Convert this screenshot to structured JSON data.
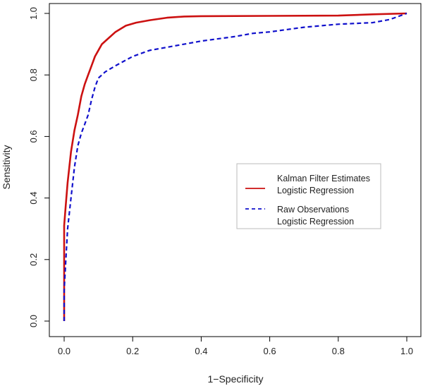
{
  "chart_data": {
    "type": "line",
    "title": "",
    "xlabel": "1−Specificity",
    "ylabel": "Sensitivity",
    "xlim": [
      0,
      1
    ],
    "ylim": [
      0,
      1
    ],
    "x_ticks": [
      "0.0",
      "0.2",
      "0.4",
      "0.6",
      "0.8",
      "1.0"
    ],
    "y_ticks": [
      "0.0",
      "0.2",
      "0.4",
      "0.6",
      "0.8",
      "1.0"
    ],
    "grid": false,
    "legend_position": "right",
    "series": [
      {
        "name": "Kalman Filter Estimates Logistic Regression",
        "legend_lines": [
          "Kalman Filter Estimates",
          "Logistic Regression"
        ],
        "color": "#cc1111",
        "style": "solid",
        "points": [
          [
            0,
            0
          ],
          [
            0,
            0.31
          ],
          [
            0.005,
            0.38
          ],
          [
            0.01,
            0.45
          ],
          [
            0.015,
            0.5
          ],
          [
            0.02,
            0.55
          ],
          [
            0.03,
            0.62
          ],
          [
            0.04,
            0.67
          ],
          [
            0.05,
            0.73
          ],
          [
            0.06,
            0.77
          ],
          [
            0.07,
            0.8
          ],
          [
            0.08,
            0.83
          ],
          [
            0.09,
            0.86
          ],
          [
            0.1,
            0.88
          ],
          [
            0.11,
            0.9
          ],
          [
            0.13,
            0.92
          ],
          [
            0.15,
            0.94
          ],
          [
            0.18,
            0.96
          ],
          [
            0.21,
            0.97
          ],
          [
            0.25,
            0.978
          ],
          [
            0.3,
            0.986
          ],
          [
            0.35,
            0.99
          ],
          [
            0.4,
            0.991
          ],
          [
            0.6,
            0.992
          ],
          [
            0.8,
            0.993
          ],
          [
            0.9,
            0.997
          ],
          [
            1,
            1
          ]
        ]
      },
      {
        "name": "Raw Observations Logistic Regression",
        "legend_lines": [
          "Raw Observations",
          "Logistic Regression"
        ],
        "color": "#1111cc",
        "style": "dashed",
        "points": [
          [
            0,
            0
          ],
          [
            0,
            0.1
          ],
          [
            0.005,
            0.2
          ],
          [
            0.01,
            0.3
          ],
          [
            0.02,
            0.4
          ],
          [
            0.03,
            0.5
          ],
          [
            0.04,
            0.57
          ],
          [
            0.05,
            0.61
          ],
          [
            0.06,
            0.64
          ],
          [
            0.07,
            0.67
          ],
          [
            0.08,
            0.72
          ],
          [
            0.09,
            0.76
          ],
          [
            0.1,
            0.79
          ],
          [
            0.12,
            0.81
          ],
          [
            0.15,
            0.83
          ],
          [
            0.2,
            0.86
          ],
          [
            0.25,
            0.88
          ],
          [
            0.3,
            0.89
          ],
          [
            0.4,
            0.91
          ],
          [
            0.5,
            0.925
          ],
          [
            0.55,
            0.935
          ],
          [
            0.6,
            0.94
          ],
          [
            0.7,
            0.955
          ],
          [
            0.8,
            0.965
          ],
          [
            0.9,
            0.97
          ],
          [
            0.95,
            0.98
          ],
          [
            1,
            1
          ]
        ]
      }
    ]
  }
}
